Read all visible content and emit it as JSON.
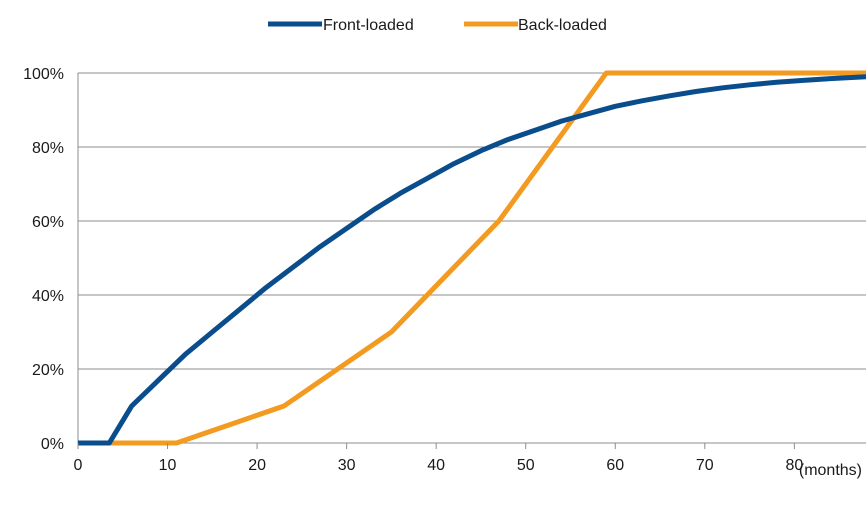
{
  "chart_data": {
    "type": "line",
    "title": "",
    "xlabel": "(months)",
    "ylabel": "",
    "xlim": [
      0,
      88
    ],
    "ylim": [
      0,
      100
    ],
    "x_ticks": [
      0,
      10,
      20,
      30,
      40,
      50,
      60,
      70,
      80
    ],
    "x_tick_labels": [
      "0",
      "10",
      "20",
      "30",
      "40",
      "50",
      "60",
      "70",
      "80"
    ],
    "y_ticks": [
      0,
      20,
      40,
      60,
      80,
      100
    ],
    "y_tick_labels": [
      "0%",
      "20%",
      "40%",
      "60%",
      "80%",
      "100%"
    ],
    "grid": "horizontal",
    "legend_position": "top-center",
    "series": [
      {
        "name": "Front-loaded",
        "color": "#0a4d8c",
        "points": [
          [
            0,
            0
          ],
          [
            3.5,
            0
          ],
          [
            6,
            10
          ],
          [
            9,
            17
          ],
          [
            12,
            24
          ],
          [
            15,
            30
          ],
          [
            18,
            36
          ],
          [
            21,
            42
          ],
          [
            24,
            47.5
          ],
          [
            27,
            53
          ],
          [
            30,
            58
          ],
          [
            33,
            63
          ],
          [
            36,
            67.5
          ],
          [
            39,
            71.5
          ],
          [
            42,
            75.5
          ],
          [
            45,
            79
          ],
          [
            48,
            82
          ],
          [
            51,
            84.5
          ],
          [
            54,
            87
          ],
          [
            57,
            89
          ],
          [
            60,
            91
          ],
          [
            63,
            92.5
          ],
          [
            66,
            93.8
          ],
          [
            69,
            95
          ],
          [
            72,
            96
          ],
          [
            75,
            96.8
          ],
          [
            78,
            97.5
          ],
          [
            81,
            98
          ],
          [
            84,
            98.5
          ],
          [
            88,
            99
          ]
        ]
      },
      {
        "name": "Back-loaded",
        "color": "#f39b21",
        "points": [
          [
            0,
            0
          ],
          [
            11,
            0
          ],
          [
            23,
            10
          ],
          [
            35,
            30
          ],
          [
            47,
            60
          ],
          [
            59,
            100
          ],
          [
            88,
            100
          ]
        ]
      }
    ]
  }
}
